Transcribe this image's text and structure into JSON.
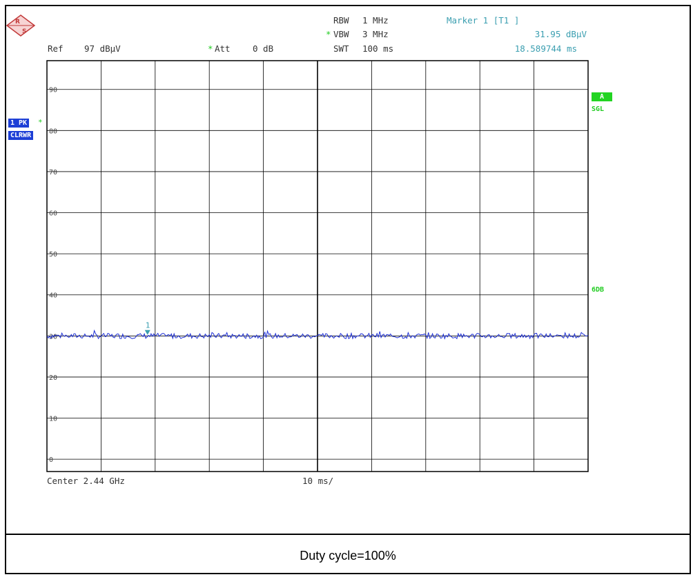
{
  "header": {
    "rbw_label": "RBW",
    "rbw_value": "1 MHz",
    "vbw_star": "*",
    "vbw_label": "VBW",
    "vbw_value": "3 MHz",
    "swt_label": "SWT",
    "swt_value": "100 ms",
    "marker_title": "Marker 1 [T1 ]",
    "marker_level": "31.95 dBµV",
    "marker_time": "18.589744 ms",
    "ref_label": "Ref",
    "ref_value": "97 dBµV",
    "att_star": "*",
    "att_label": "Att",
    "att_value": "0 dB"
  },
  "left_badges": {
    "trace": "1 PK",
    "trace_star": "*",
    "mode": "CLRWR"
  },
  "right_badges": {
    "a": "A",
    "sgl": "SGL",
    "sixdb": "6DB"
  },
  "footer": {
    "center": "Center 2.44 GHz",
    "span": "10 ms/"
  },
  "caption": "Duty cycle=100%",
  "colors": {
    "trace": "#1d2fd6",
    "grid": "#000000",
    "marker": "#3a9eb0",
    "accent_green": "#22cc22"
  },
  "chart_data": {
    "type": "line",
    "x_unit": "ms",
    "y_unit": "dBµV",
    "xlim": [
      0,
      100
    ],
    "ylim": [
      -3,
      97
    ],
    "y_ticks": [
      0,
      10,
      20,
      30,
      40,
      50,
      60,
      70,
      80,
      90
    ],
    "grid": true,
    "series": [
      {
        "values_level_mean": 30,
        "values_jitter": 1.2
      }
    ],
    "marker": {
      "label": "1",
      "x": 18.589744,
      "y": 31.95
    }
  }
}
